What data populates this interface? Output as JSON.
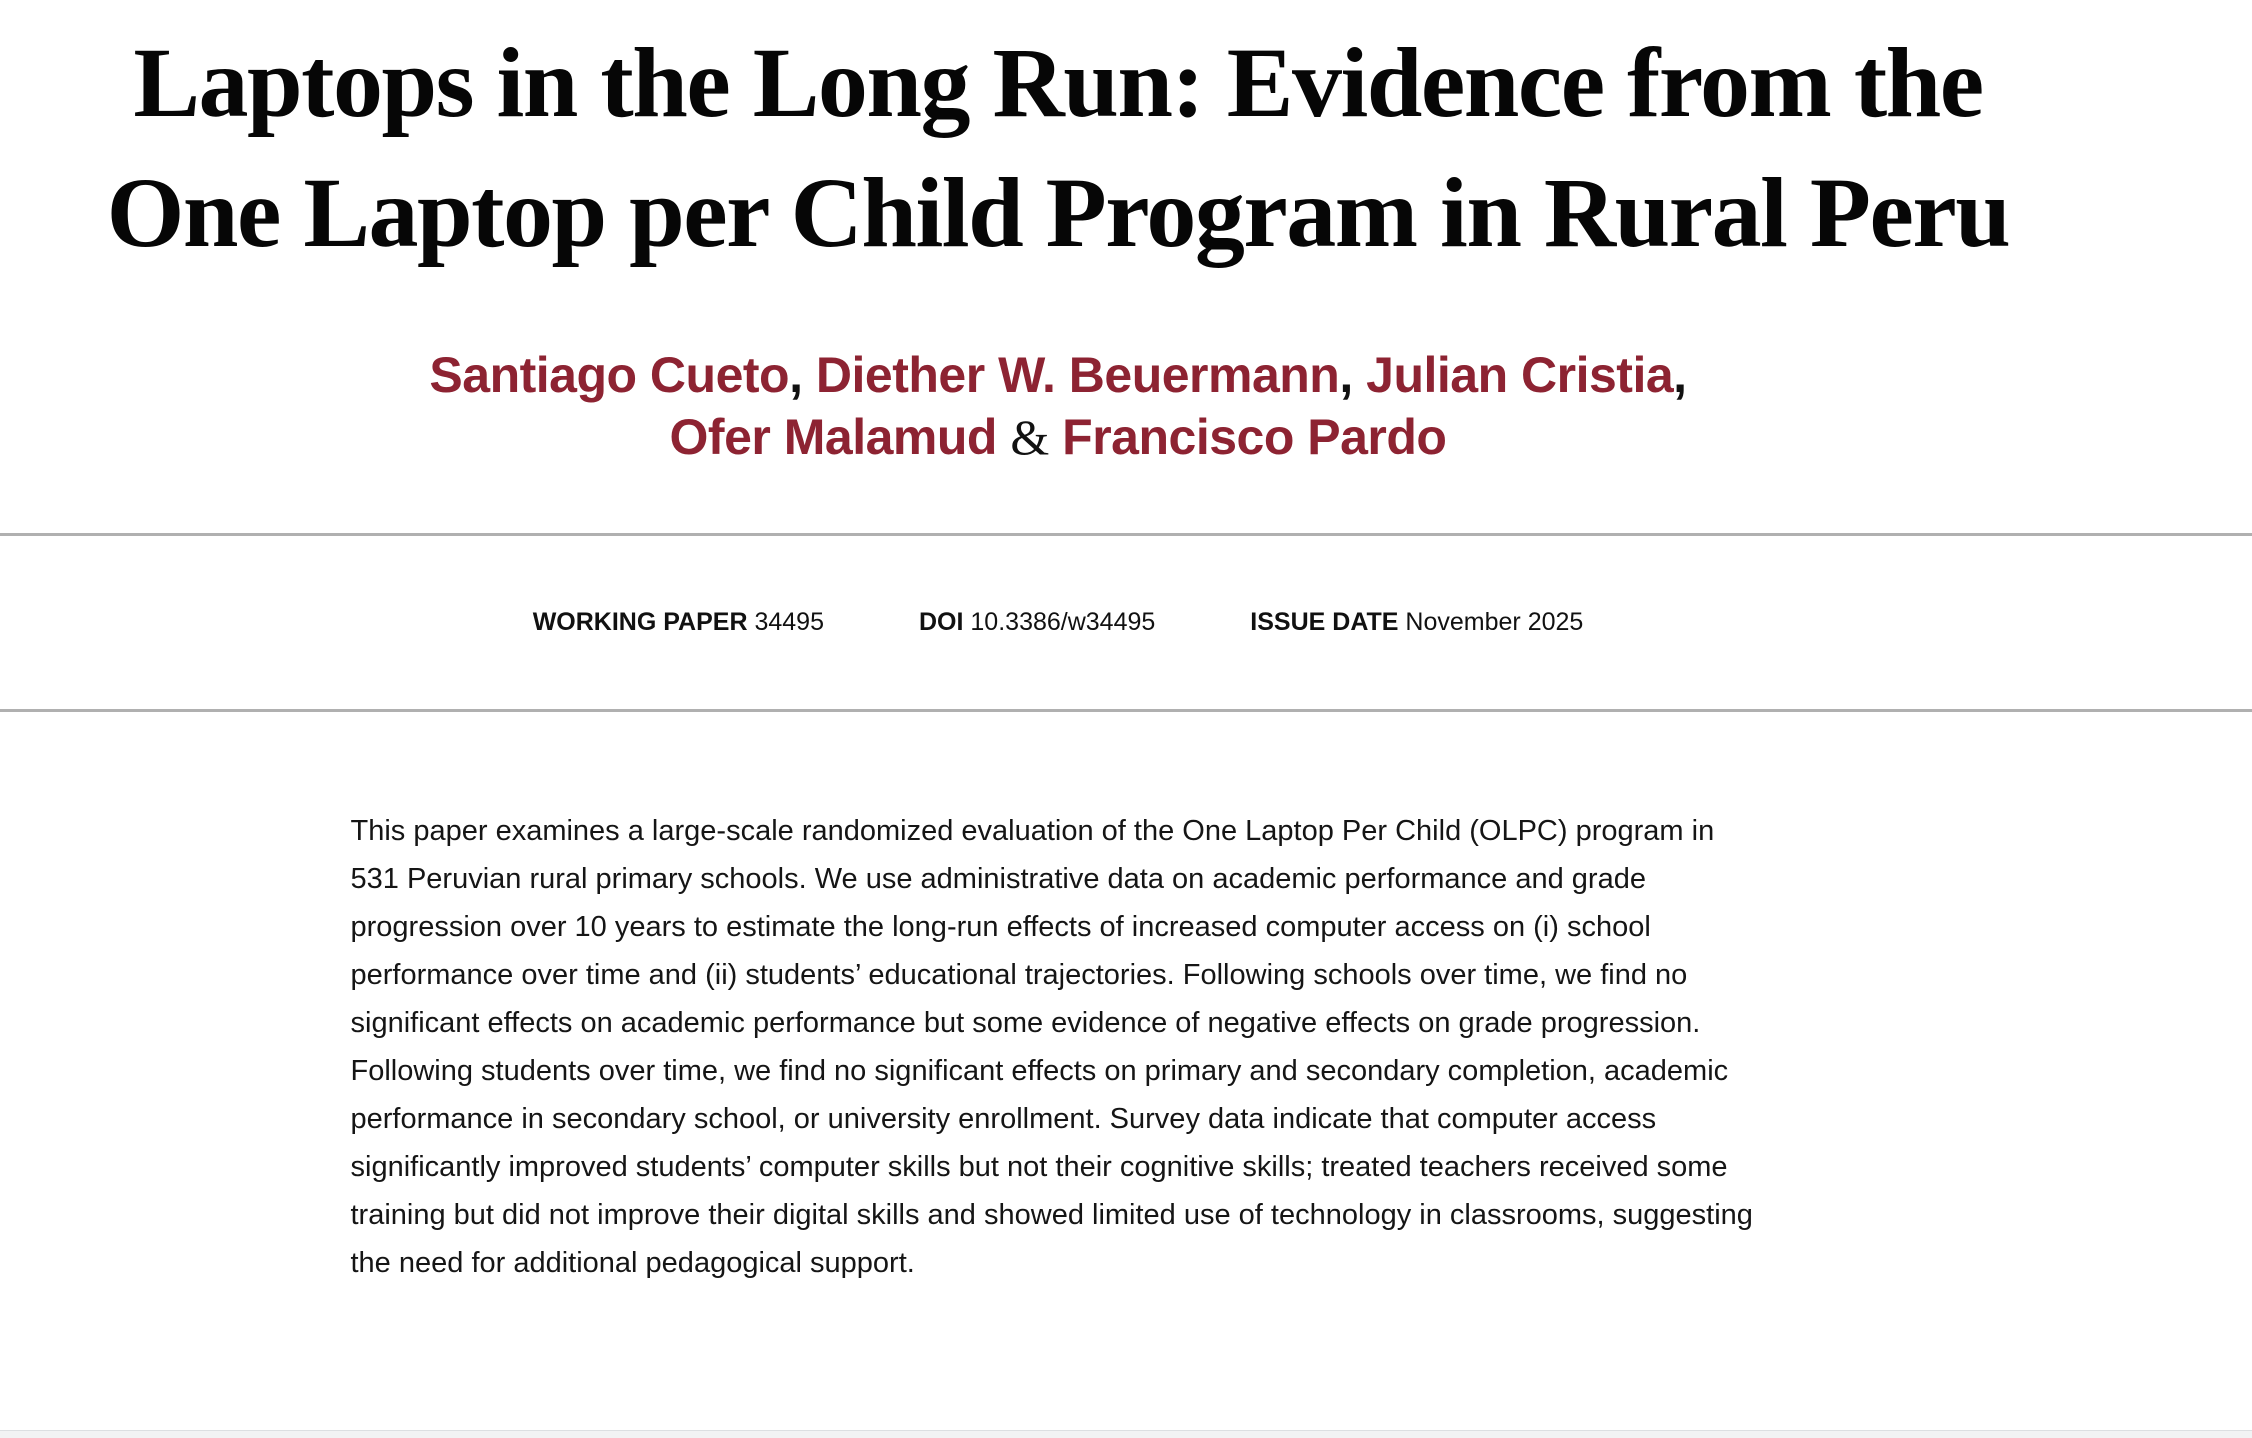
{
  "title": {
    "line1": "Laptops in the Long Run: Evidence from the",
    "line2": "One Laptop per Child Program in Rural Peru"
  },
  "authors": [
    {
      "name": "Santiago Cueto"
    },
    {
      "name": "Diether W. Beuermann"
    },
    {
      "name": "Julian Cristia"
    },
    {
      "name": "Ofer Malamud"
    },
    {
      "name": "Francisco Pardo"
    }
  ],
  "separators": {
    "comma": ",",
    "ampersand": "&"
  },
  "meta": {
    "working_paper_label": "WORKING PAPER",
    "working_paper_number": "34495",
    "doi_label": "DOI",
    "doi_value": "10.3386/w34495",
    "issue_date_label": "ISSUE DATE",
    "issue_date_value": "November 2025"
  },
  "abstract_text": "This paper examines a large-scale randomized evaluation of the One Laptop Per Child (OLPC) program in 531 Peruvian rural primary schools. We use administrative data on academic performance and grade progression over 10 years to estimate the long-run effects of increased computer access on (i) school performance over time and (ii) students’ educational trajectories. Following schools over time, we find no significant effects on academic performance but some evidence of negative effects on grade progression. Following students over time, we find no significant effects on primary and secondary completion, academic performance in secondary school, or university enrollment. Survey data indicate that computer access significantly improved students’ computer skills but not their cognitive skills; treated teachers received some training but did not improve their digital skills and showed limited use of technology in classrooms, suggesting the need for additional pedagogical support.",
  "colors": {
    "author_link": "#8d2332",
    "rule": "#b0b0b0",
    "footer_strip": "#f2f3f4"
  }
}
